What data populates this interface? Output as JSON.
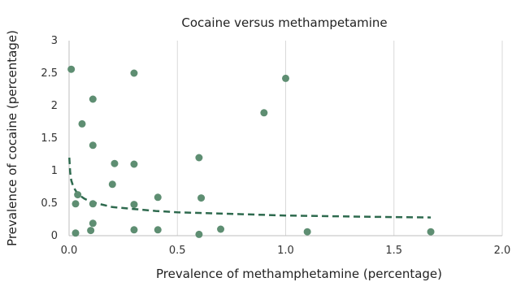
{
  "chart_data": {
    "type": "scatter",
    "title": "Cocaine versus methampetamine",
    "xlabel": "Prevalence of methamphetamine (percentage)",
    "ylabel": "Prevalence of cocaine (percentage)",
    "xlim": [
      0,
      2.0
    ],
    "ylim": [
      0,
      3
    ],
    "x_ticks": [
      "0.0",
      "0.5",
      "1.0",
      "1.5",
      "2.0"
    ],
    "y_ticks": [
      "0",
      "0.5",
      "1",
      "1.5",
      "2",
      "2.5",
      "3"
    ],
    "x_tick_values": [
      0,
      0.5,
      1.0,
      1.5,
      2.0
    ],
    "y_tick_values": [
      0,
      0.5,
      1,
      1.5,
      2,
      2.5,
      3
    ],
    "grid": {
      "vertical": true,
      "horizontal": false
    },
    "series": [
      {
        "color": "#5e8e72",
        "points": [
          {
            "x": 0.01,
            "y": 2.56
          },
          {
            "x": 0.3,
            "y": 2.5
          },
          {
            "x": 1.0,
            "y": 2.42
          },
          {
            "x": 0.11,
            "y": 2.1
          },
          {
            "x": 0.9,
            "y": 1.89
          },
          {
            "x": 0.06,
            "y": 1.72
          },
          {
            "x": 0.11,
            "y": 1.39
          },
          {
            "x": 0.6,
            "y": 1.2
          },
          {
            "x": 0.21,
            "y": 1.11
          },
          {
            "x": 0.3,
            "y": 1.1
          },
          {
            "x": 0.2,
            "y": 0.79
          },
          {
            "x": 0.04,
            "y": 0.63
          },
          {
            "x": 0.41,
            "y": 0.59
          },
          {
            "x": 0.61,
            "y": 0.58
          },
          {
            "x": 0.03,
            "y": 0.49
          },
          {
            "x": 0.11,
            "y": 0.49
          },
          {
            "x": 0.3,
            "y": 0.48
          },
          {
            "x": 0.11,
            "y": 0.19
          },
          {
            "x": 0.3,
            "y": 0.09
          },
          {
            "x": 0.41,
            "y": 0.09
          },
          {
            "x": 0.7,
            "y": 0.1
          },
          {
            "x": 0.1,
            "y": 0.08
          },
          {
            "x": 0.03,
            "y": 0.04
          },
          {
            "x": 0.6,
            "y": 0.02
          },
          {
            "x": 1.1,
            "y": 0.06
          },
          {
            "x": 1.67,
            "y": 0.06
          }
        ]
      }
    ],
    "trendline": {
      "style": "dashed",
      "color": "#2e6a4e",
      "points": [
        {
          "x": 0.001,
          "y": 1.2
        },
        {
          "x": 0.005,
          "y": 0.98
        },
        {
          "x": 0.01,
          "y": 0.85
        },
        {
          "x": 0.02,
          "y": 0.75
        },
        {
          "x": 0.04,
          "y": 0.64
        },
        {
          "x": 0.07,
          "y": 0.57
        },
        {
          "x": 0.1,
          "y": 0.52
        },
        {
          "x": 0.15,
          "y": 0.48
        },
        {
          "x": 0.2,
          "y": 0.44
        },
        {
          "x": 0.3,
          "y": 0.41
        },
        {
          "x": 0.4,
          "y": 0.38
        },
        {
          "x": 0.5,
          "y": 0.36
        },
        {
          "x": 0.6,
          "y": 0.35
        },
        {
          "x": 0.8,
          "y": 0.33
        },
        {
          "x": 1.0,
          "y": 0.31
        },
        {
          "x": 1.2,
          "y": 0.3
        },
        {
          "x": 1.4,
          "y": 0.29
        },
        {
          "x": 1.67,
          "y": 0.28
        }
      ]
    }
  }
}
